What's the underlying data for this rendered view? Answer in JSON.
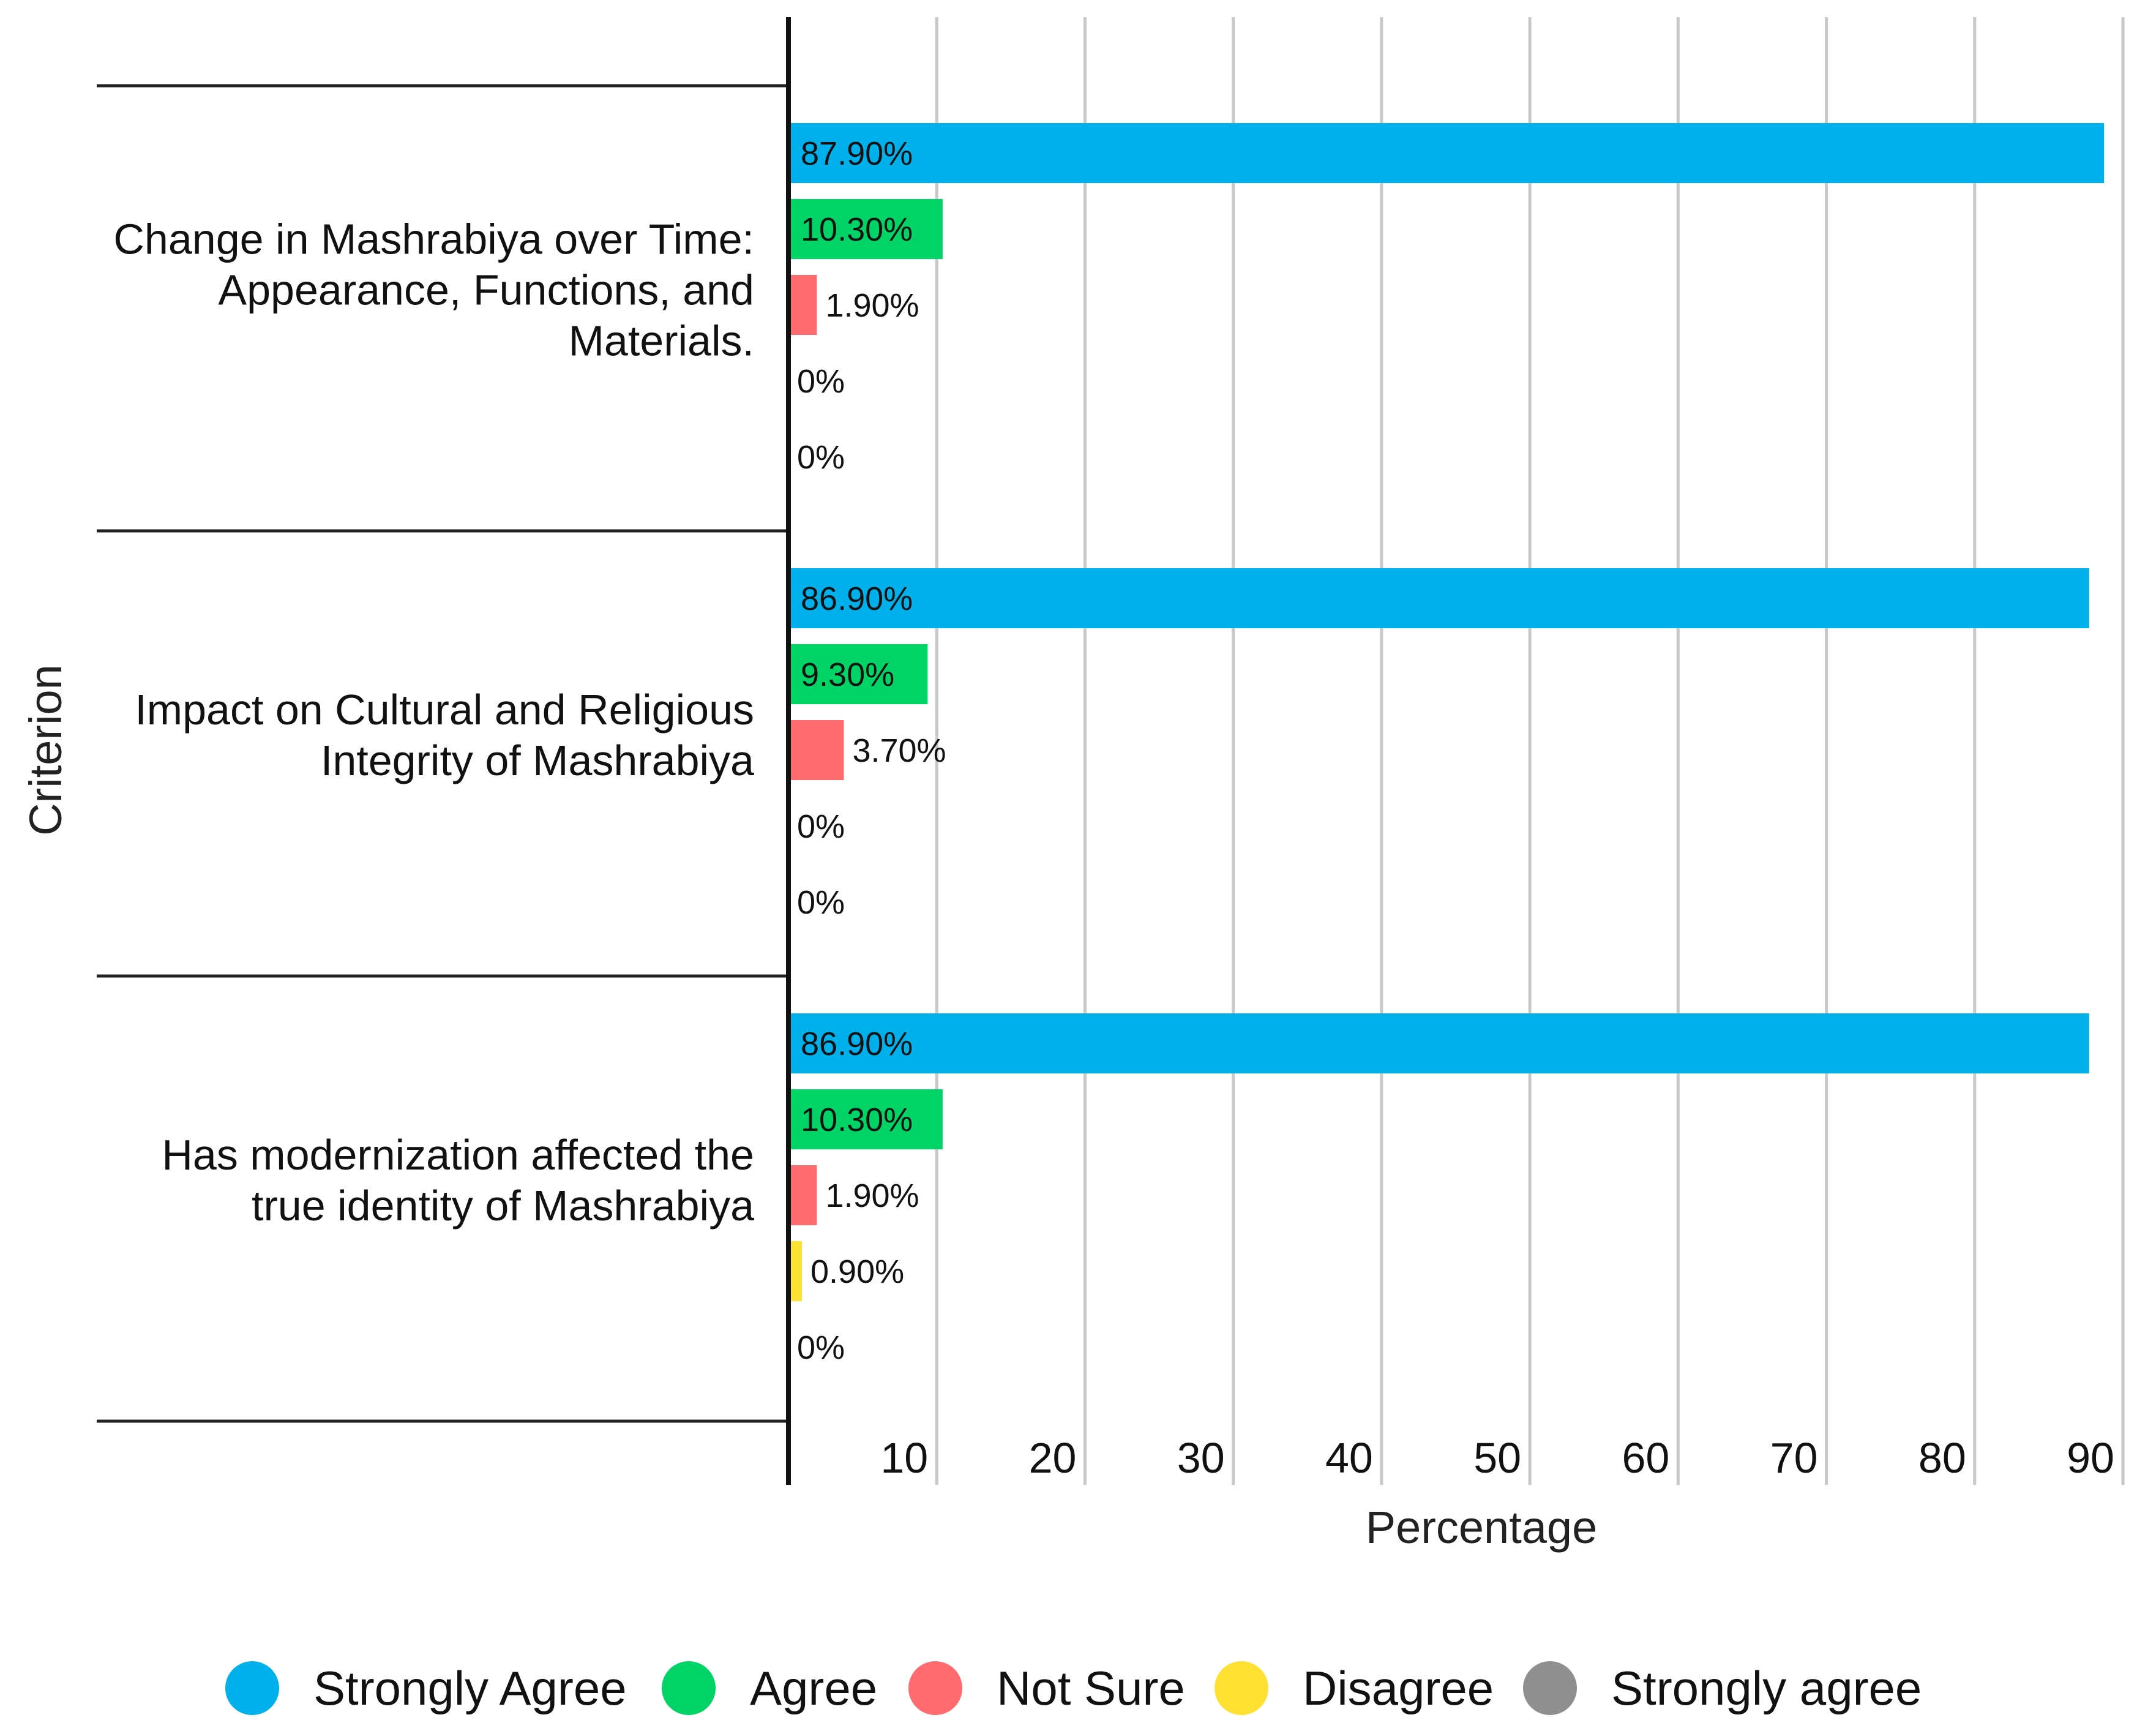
{
  "chart_data": {
    "type": "bar",
    "orientation": "horizontal",
    "title": "",
    "xlabel": "Percentage",
    "ylabel": "Criterion",
    "xlim": [
      0,
      90
    ],
    "x_ticks": [
      10,
      20,
      30,
      40,
      50,
      60,
      70,
      80,
      90
    ],
    "grid": true,
    "legend_position": "bottom",
    "categories": [
      [
        "Change in Mashrabiya over Time:",
        "Appearance, Functions, and",
        "Materials."
      ],
      [
        "Impact on Cultural and Religious",
        "Integrity of Mashrabiya"
      ],
      [
        "Has modernization affected the",
        "true identity of Mashrabiya"
      ]
    ],
    "series": [
      {
        "name": "Strongly Agree",
        "color": "#00B0EB",
        "values": [
          87.9,
          86.9,
          86.9
        ],
        "labels": [
          "87.90%",
          "86.90%",
          "86.90%"
        ]
      },
      {
        "name": "Agree",
        "color": "#00D466",
        "values": [
          10.3,
          9.3,
          10.3
        ],
        "labels": [
          "10.30%",
          "9.30%",
          "10.30%"
        ]
      },
      {
        "name": "Not Sure",
        "color": "#FF6B6F",
        "values": [
          1.9,
          3.7,
          1.9
        ],
        "labels": [
          "1.90%",
          "3.70%",
          "1.90%"
        ]
      },
      {
        "name": "Disagree",
        "color": "#FFE033",
        "values": [
          0,
          0,
          0.9
        ],
        "labels": [
          "0%",
          "0%",
          "0.90%"
        ]
      },
      {
        "name": "Strongly agree",
        "color": "#8F8F8F",
        "values": [
          0,
          0,
          0
        ],
        "labels": [
          "0%",
          "0%",
          "0%"
        ]
      }
    ]
  }
}
